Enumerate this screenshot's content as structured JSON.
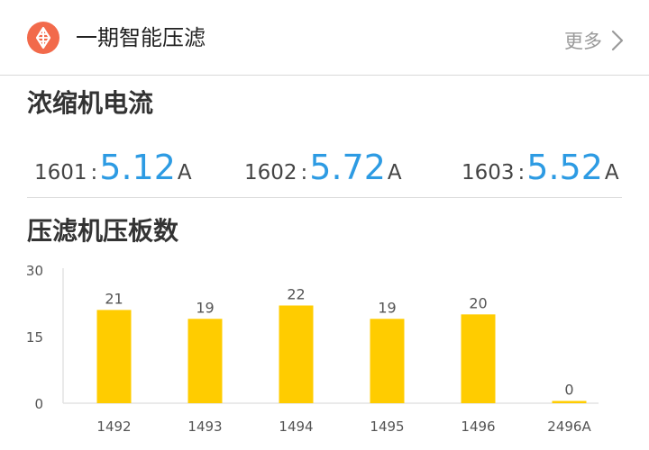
{
  "header": {
    "title": "一期智能压滤",
    "more_label": "更多",
    "icon": "filter-press-icon",
    "accent_color": "#f26a4b"
  },
  "currents": {
    "title": "浓缩机电流",
    "items": [
      {
        "id": "1601",
        "separator": ":",
        "value": "5.12",
        "unit": "A"
      },
      {
        "id": "1602",
        "separator": ":",
        "value": "5.72",
        "unit": "A"
      },
      {
        "id": "1603",
        "separator": ":",
        "value": "5.52",
        "unit": "A"
      }
    ],
    "value_color": "#2d9be3"
  },
  "plates": {
    "title": "压滤机压板数"
  },
  "chart_data": {
    "type": "bar",
    "categories": [
      "1492",
      "1493",
      "1494",
      "1495",
      "1496",
      "2496A"
    ],
    "values": [
      21,
      19,
      22,
      19,
      20,
      0
    ],
    "ylim": [
      0,
      30
    ],
    "yticks": [
      0,
      15,
      30
    ],
    "grid": false,
    "legend": "none",
    "bar_color": "#ffcc00"
  }
}
